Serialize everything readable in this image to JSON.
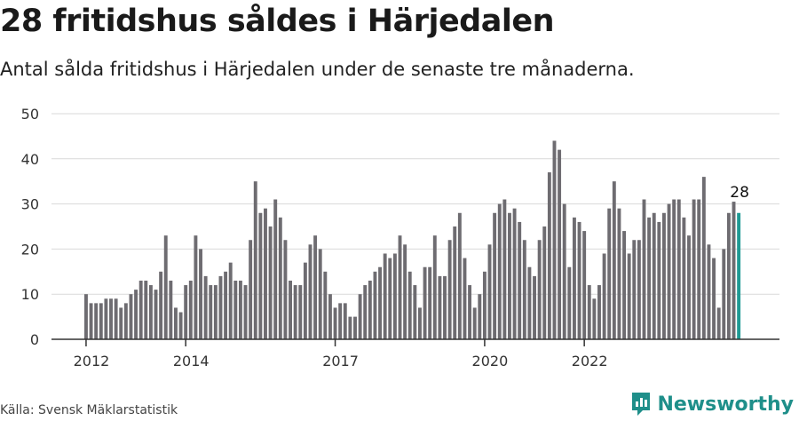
{
  "title": "28 fritidshus såldes i Härjedalen",
  "subtitle": "Antal sålda fritidshus i Härjedalen under de senaste tre månaderna.",
  "source": "Källa: Svensk Mäklarstatistik",
  "brand": "Newsworthy",
  "colors": {
    "bar": "#6e6c71",
    "highlight": "#1f9a94",
    "grid": "#d9d9d9",
    "brand": "#1f8f8a"
  },
  "chart_data": {
    "type": "bar",
    "title": "28 fritidshus såldes i Härjedalen",
    "subtitle": "Antal sålda fritidshus i Härjedalen under de senaste tre månaderna.",
    "xlabel": "",
    "ylabel": "",
    "ylim": [
      0,
      50
    ],
    "yticks": [
      0,
      10,
      20,
      30,
      40,
      50
    ],
    "xticks": [
      "2012",
      "2014",
      "2017",
      "2020",
      "2022"
    ],
    "grid": true,
    "legend": "none",
    "highlight_label": "28",
    "values": [
      10,
      8,
      8,
      8,
      9,
      9,
      9,
      7,
      8,
      10,
      11,
      13,
      13,
      12,
      11,
      15,
      23,
      13,
      7,
      6,
      12,
      13,
      23,
      20,
      14,
      12,
      12,
      14,
      15,
      17,
      13,
      13,
      12,
      22,
      35,
      28,
      29,
      25,
      31,
      27,
      22,
      13,
      12,
      12,
      17,
      21,
      23,
      20,
      15,
      10,
      7,
      8,
      8,
      5,
      5,
      10,
      12,
      13,
      15,
      16,
      19,
      18,
      19,
      23,
      21,
      15,
      12,
      7,
      16,
      16,
      23,
      14,
      14,
      22,
      25,
      28,
      18,
      12,
      7,
      10,
      15,
      21,
      28,
      30,
      31,
      28,
      29,
      26,
      22,
      16,
      14,
      22,
      25,
      37,
      44,
      42,
      30,
      16,
      27,
      26,
      24,
      12,
      9,
      12,
      19,
      29,
      35,
      29,
      24,
      19,
      22,
      22,
      31,
      27,
      28,
      26,
      28,
      30,
      31,
      31,
      27,
      23,
      31,
      31,
      36,
      21,
      18,
      7,
      20,
      28,
      30.5,
      28
    ],
    "x_tick_positions_index": [
      0,
      20,
      50,
      80,
      100
    ]
  }
}
